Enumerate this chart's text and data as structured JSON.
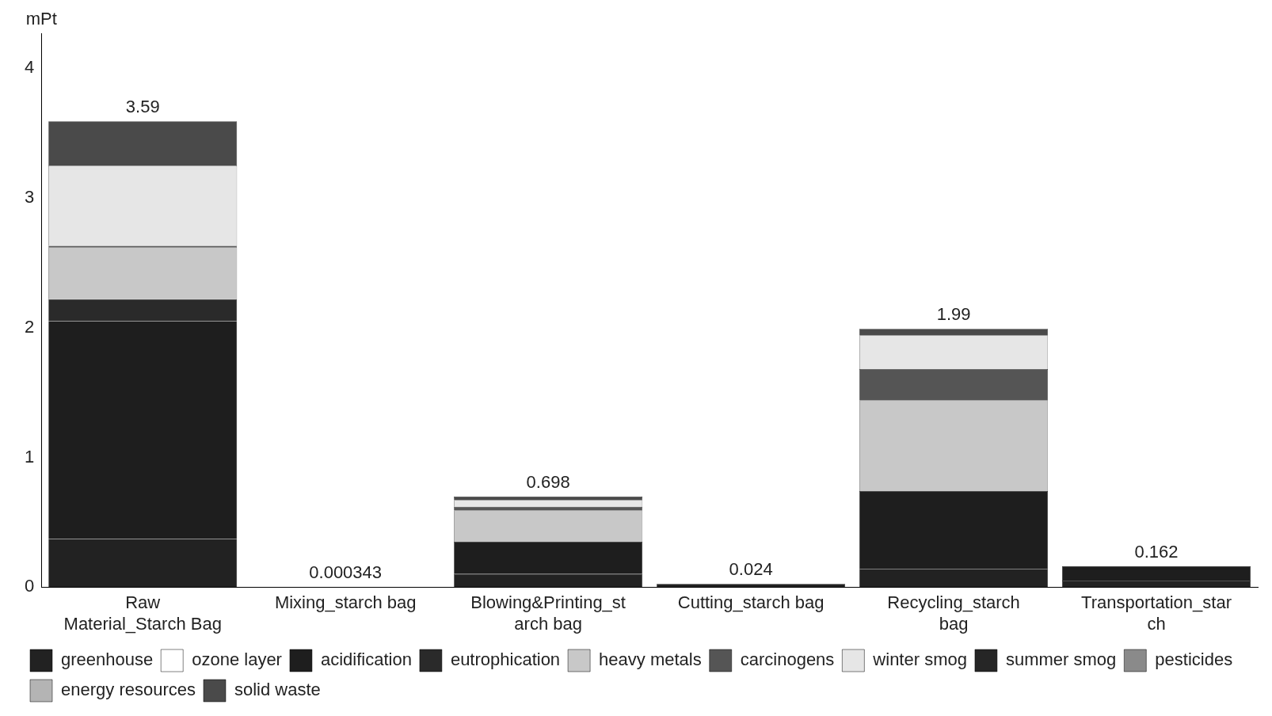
{
  "chart_data": {
    "type": "bar",
    "stacked": true,
    "ylabel": "mPt",
    "categories": [
      "Raw Material_Starch Bag",
      "Mixing_starch bag",
      "Blowing&Printing_starch bag",
      "Cutting_starch bag",
      "Recycling_starch bag",
      "Transportation_starch"
    ],
    "series": [
      {
        "name": "greenhouse",
        "color": "#222222",
        "values": [
          0.37,
          0.000343,
          0.1,
          0.024,
          0.14,
          0.05
        ]
      },
      {
        "name": "ozone layer",
        "color": "#ffffff",
        "values": [
          0,
          0,
          0,
          0,
          0,
          0
        ]
      },
      {
        "name": "acidification",
        "color": "#1e1e1e",
        "values": [
          1.68,
          0,
          0.25,
          0,
          0.6,
          0.112
        ]
      },
      {
        "name": "eutrophication",
        "color": "#2a2a2a",
        "values": [
          0.17,
          0,
          0,
          0,
          0,
          0
        ]
      },
      {
        "name": "heavy metals",
        "color": "#c8c8c8",
        "values": [
          0.4,
          0,
          0.24,
          0,
          0.7,
          0
        ]
      },
      {
        "name": "carcinogens",
        "color": "#555555",
        "values": [
          0.01,
          0,
          0.03,
          0,
          0.24,
          0
        ]
      },
      {
        "name": "winter smog",
        "color": "#e6e6e6",
        "values": [
          0.62,
          0,
          0.05,
          0,
          0.26,
          0
        ]
      },
      {
        "name": "summer smog",
        "color": "#262626",
        "values": [
          0,
          0,
          0,
          0,
          0,
          0
        ]
      },
      {
        "name": "pesticides",
        "color": "#8a8a8a",
        "values": [
          0,
          0,
          0,
          0,
          0,
          0
        ]
      },
      {
        "name": "energy resources",
        "color": "#b4b4b4",
        "values": [
          0,
          0,
          0,
          0,
          0,
          0
        ]
      },
      {
        "name": "solid waste",
        "color": "#4a4a4a",
        "values": [
          0.34,
          0,
          0.028,
          0,
          0.05,
          0
        ]
      }
    ],
    "totals": [
      "3.59",
      "0.000343",
      "0.698",
      "0.024",
      "1.99",
      "0.162"
    ],
    "ylim": [
      0,
      4.27
    ],
    "yticks": [
      0,
      1,
      2,
      3,
      4
    ],
    "grid": false,
    "legend": "bottom"
  }
}
